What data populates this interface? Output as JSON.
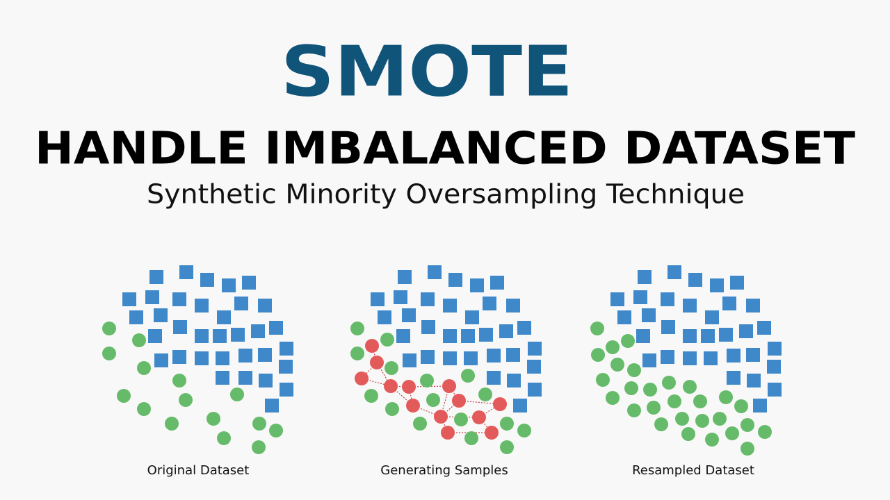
{
  "header": {
    "title": "SMOTE",
    "subtitle": "HANDLE IMBALANCED DATASET",
    "description": "Synthetic Minority Oversampling Technique"
  },
  "panels": [
    {
      "label": "Original Dataset"
    },
    {
      "label": "Generating Samples"
    },
    {
      "label": "Resampled Dataset"
    }
  ]
}
